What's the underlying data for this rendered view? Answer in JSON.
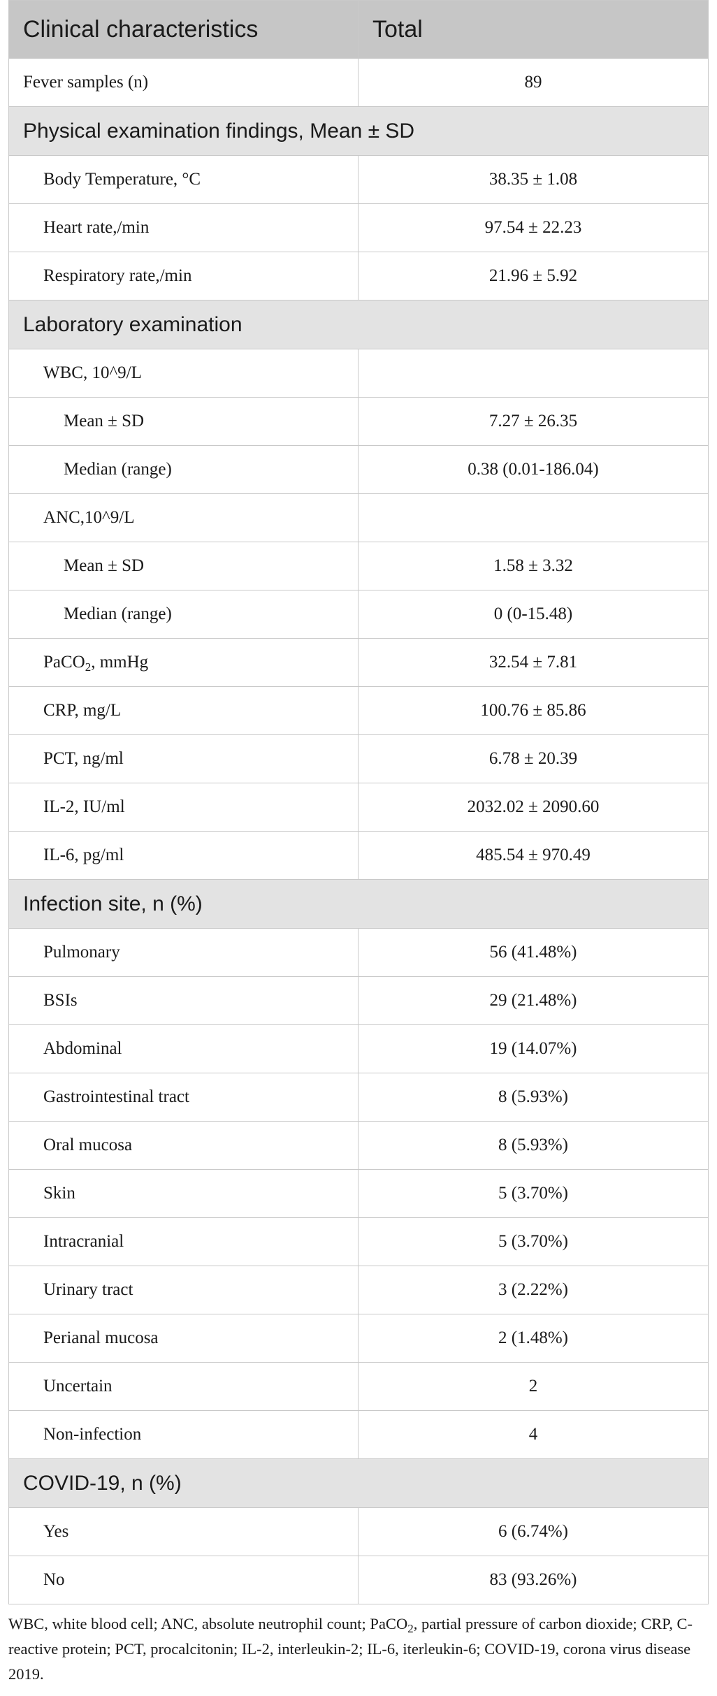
{
  "header": {
    "col1": "Clinical characteristics",
    "col2": "Total"
  },
  "fever_row": {
    "label": "Fever samples (n)",
    "value": "89"
  },
  "sections": [
    {
      "title": "Physical examination findings, Mean ± SD",
      "rows": [
        {
          "label": "Body Temperature, °C",
          "value": "38.35 ± 1.08"
        },
        {
          "label": "Heart rate,/min",
          "value": "97.54 ± 22.23"
        },
        {
          "label": "Respiratory rate,/min",
          "value": "21.96 ± 5.92"
        }
      ]
    },
    {
      "title": "Laboratory examination",
      "rows": [
        {
          "label": "WBC, 10^9/L",
          "value": ""
        },
        {
          "label": "Mean ± SD",
          "value": "7.27 ± 26.35"
        },
        {
          "label": "Median (range)",
          "value": "0.38 (0.01-186.04)"
        },
        {
          "label": "ANC,10^9/L",
          "value": ""
        },
        {
          "label": "Mean ± SD",
          "value": "1.58 ± 3.32"
        },
        {
          "label": "Median (range)",
          "value": "0 (0-15.48)"
        },
        {
          "label_pre": "PaCO",
          "label_sub": "2",
          "label_post": ", mmHg",
          "value": "32.54 ± 7.81"
        },
        {
          "label": "CRP, mg/L",
          "value": "100.76 ± 85.86"
        },
        {
          "label": "PCT, ng/ml",
          "value": "6.78 ± 20.39"
        },
        {
          "label": "IL-2, IU/ml",
          "value": "2032.02 ± 2090.60"
        },
        {
          "label": "IL-6, pg/ml",
          "value": "485.54 ± 970.49"
        }
      ]
    },
    {
      "title": "Infection site, n (%)",
      "rows": [
        {
          "label": "Pulmonary",
          "value": "56 (41.48%)"
        },
        {
          "label": "BSIs",
          "value": "29 (21.48%)"
        },
        {
          "label": "Abdominal",
          "value": "19 (14.07%)"
        },
        {
          "label": "Gastrointestinal tract",
          "value": "8 (5.93%)"
        },
        {
          "label": "Oral mucosa",
          "value": "8 (5.93%)"
        },
        {
          "label": "Skin",
          "value": "5 (3.70%)"
        },
        {
          "label": "Intracranial",
          "value": "5 (3.70%)"
        },
        {
          "label": "Urinary tract",
          "value": "3 (2.22%)"
        },
        {
          "label": "Perianal mucosa",
          "value": "2 (1.48%)"
        },
        {
          "label": "Uncertain",
          "value": "2"
        },
        {
          "label": "Non-infection",
          "value": "4"
        }
      ]
    },
    {
      "title": "COVID-19, n (%)",
      "rows": [
        {
          "label": "Yes",
          "value": "6 (6.74%)"
        },
        {
          "label": "No",
          "value": "83 (93.26%)"
        }
      ]
    }
  ],
  "footnote": {
    "pre": "WBC, white blood cell; ANC, absolute neutrophil count; PaCO",
    "sub": "2",
    "post": ", partial pressure of carbon dioxide; CRP, C-reactive protein; PCT, procalcitonin; IL-2, interleukin-2; IL-6, iterleukin-6; COVID-19, corona virus disease 2019."
  }
}
